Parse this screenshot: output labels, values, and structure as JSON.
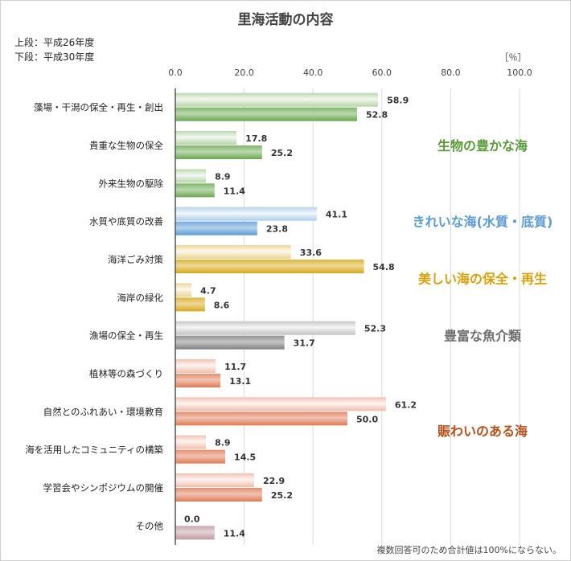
{
  "title": "里海活動の内容",
  "legend": {
    "upper": "上段：平成26年度",
    "lower": "下段：平成30年度"
  },
  "unit_label": "［％］",
  "note": "複数回答可のため合計値は100%にならない。",
  "colors": {
    "green": "#6aa84f",
    "blue": "#5b9bd5",
    "yellow": "#d6a91a",
    "gray": "#808080",
    "salmon": "#e07a55",
    "mauve": "#c09aa3",
    "group_green": "#5a9a3a",
    "group_blue": "#5b9bd5",
    "group_yellow": "#d8a10c",
    "group_gray": "#6d6d6d",
    "group_brown": "#b3501b"
  },
  "groups": [
    {
      "label": "生物の豊かな海",
      "color": "group_green",
      "categories": [
        0,
        1,
        2
      ]
    },
    {
      "label": "きれいな海(水質・底質)",
      "color": "group_blue",
      "categories": [
        3
      ]
    },
    {
      "label": "美しい海の保全・再生",
      "color": "group_yellow",
      "categories": [
        4,
        5
      ]
    },
    {
      "label": "豊富な魚介類",
      "color": "group_gray",
      "categories": [
        6
      ]
    },
    {
      "label": "賑わいのある海",
      "color": "group_brown",
      "categories": [
        7,
        8,
        9,
        10
      ]
    }
  ],
  "chart_data": {
    "type": "bar",
    "orientation": "horizontal",
    "title": "里海活動の内容",
    "xlim": [
      0,
      100
    ],
    "xticks": [
      "0.0",
      "20.0",
      "40.0",
      "60.0",
      "80.0",
      "100.0"
    ],
    "categories": [
      "藻場・干潟の保全・再生・創出",
      "貴重な生物の保全",
      "外来生物の駆除",
      "水質や底質の改善",
      "海洋ごみ対策",
      "海岸の緑化",
      "漁場の保全・再生",
      "植林等の森づくり",
      "自然とのふれあい・環境教育",
      "海を活用したコミュニティの構築",
      "学習会やシンポジウムの開催",
      "その他"
    ],
    "bar_colors": [
      "green",
      "green",
      "green",
      "blue",
      "yellow",
      "yellow",
      "gray",
      "salmon",
      "salmon",
      "salmon",
      "salmon",
      "mauve"
    ],
    "series": [
      {
        "name": "上段：平成26年度",
        "values": [
          58.9,
          17.8,
          8.9,
          41.1,
          33.6,
          4.7,
          52.3,
          11.7,
          61.2,
          8.9,
          22.9,
          0.0
        ]
      },
      {
        "name": "下段：平成30年度",
        "values": [
          52.8,
          25.2,
          11.4,
          23.8,
          54.8,
          8.6,
          31.7,
          13.1,
          50.0,
          14.5,
          25.2,
          11.4
        ]
      }
    ],
    "value_labels": [
      [
        "58.9",
        "17.8",
        "8.9",
        "41.1",
        "33.6",
        "4.7",
        "52.3",
        "11.7",
        "61.2",
        "8.9",
        "22.9",
        "0.0"
      ],
      [
        "52.8",
        "25.2",
        "11.4",
        "23.8",
        "54.8",
        "8.6",
        "31.7",
        "13.1",
        "50.0",
        "14.5",
        "25.2",
        "11.4"
      ]
    ],
    "grid": true
  }
}
